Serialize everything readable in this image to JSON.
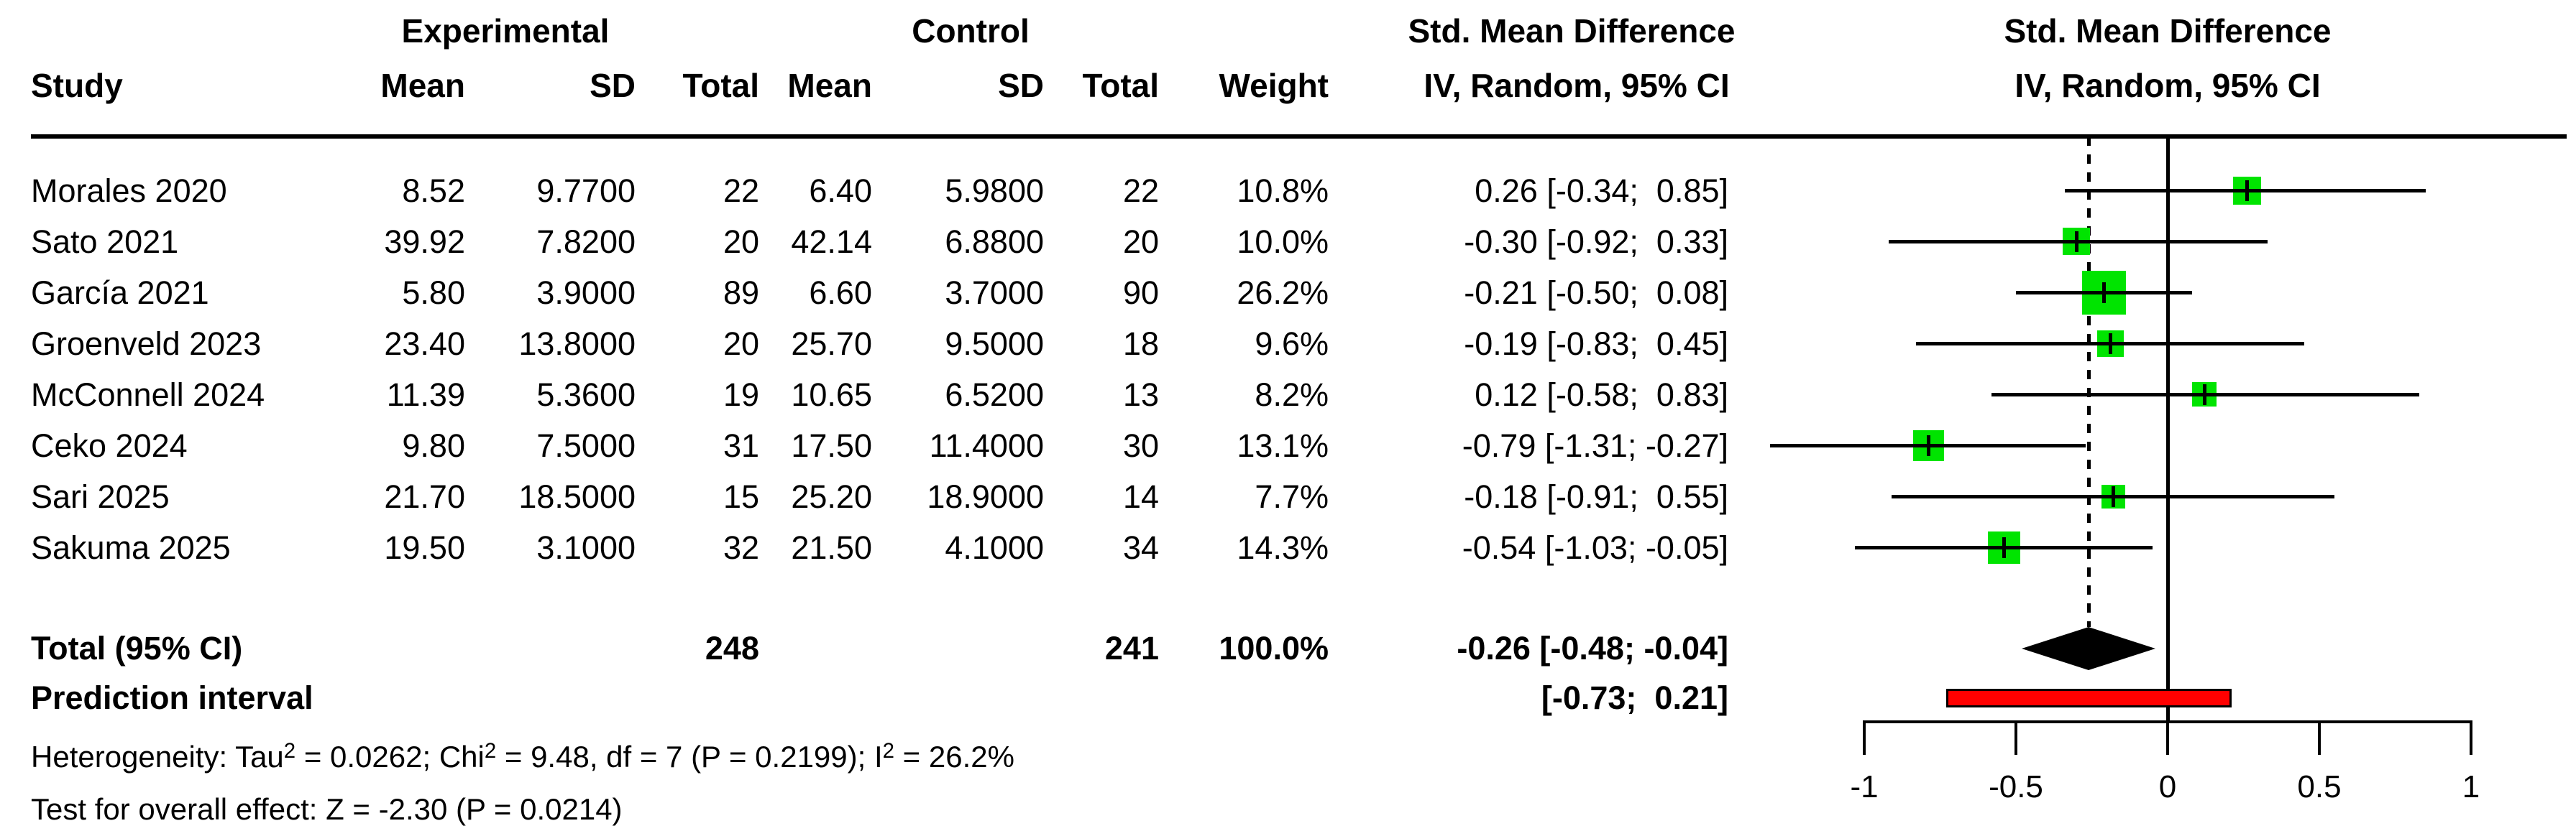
{
  "header": {
    "study": "Study",
    "experimental": "Experimental",
    "control": "Control",
    "exp_mean": "Mean",
    "exp_sd": "SD",
    "exp_total": "Total",
    "ctrl_mean": "Mean",
    "ctrl_sd": "SD",
    "ctrl_total": "Total",
    "weight": "Weight",
    "smd_line1": "Std. Mean Difference",
    "smd_line2": "IV, Random, 95% CI",
    "plot_line1": "Std. Mean Difference",
    "plot_line2": "IV, Random, 95% CI"
  },
  "studies": [
    {
      "name": "Morales 2020",
      "exp_mean": "8.52",
      "exp_sd": "9.7700",
      "exp_total": "22",
      "ctrl_mean": "6.40",
      "ctrl_sd": "5.9800",
      "ctrl_total": "22",
      "weight_text": "10.8%",
      "smd_text": "0.26 [-0.34;  0.85]",
      "est": 0.26,
      "lo": -0.34,
      "hi": 0.85,
      "weight": 10.8
    },
    {
      "name": "Sato 2021",
      "exp_mean": "39.92",
      "exp_sd": "7.8200",
      "exp_total": "20",
      "ctrl_mean": "42.14",
      "ctrl_sd": "6.8800",
      "ctrl_total": "20",
      "weight_text": "10.0%",
      "smd_text": "-0.30 [-0.92;  0.33]",
      "est": -0.3,
      "lo": -0.92,
      "hi": 0.33,
      "weight": 10.0
    },
    {
      "name": "García 2021",
      "exp_mean": "5.80",
      "exp_sd": "3.9000",
      "exp_total": "89",
      "ctrl_mean": "6.60",
      "ctrl_sd": "3.7000",
      "ctrl_total": "90",
      "weight_text": "26.2%",
      "smd_text": "-0.21 [-0.50;  0.08]",
      "est": -0.21,
      "lo": -0.5,
      "hi": 0.08,
      "weight": 26.2
    },
    {
      "name": "Groenveld 2023",
      "exp_mean": "23.40",
      "exp_sd": "13.8000",
      "exp_total": "20",
      "ctrl_mean": "25.70",
      "ctrl_sd": "9.5000",
      "ctrl_total": "18",
      "weight_text": "9.6%",
      "smd_text": "-0.19 [-0.83;  0.45]",
      "est": -0.19,
      "lo": -0.83,
      "hi": 0.45,
      "weight": 9.6
    },
    {
      "name": "McConnell 2024",
      "exp_mean": "11.39",
      "exp_sd": "5.3600",
      "exp_total": "19",
      "ctrl_mean": "10.65",
      "ctrl_sd": "6.5200",
      "ctrl_total": "13",
      "weight_text": "8.2%",
      "smd_text": "0.12 [-0.58;  0.83]",
      "est": 0.12,
      "lo": -0.58,
      "hi": 0.83,
      "weight": 8.2
    },
    {
      "name": "Ceko 2024",
      "exp_mean": "9.80",
      "exp_sd": "7.5000",
      "exp_total": "31",
      "ctrl_mean": "17.50",
      "ctrl_sd": "11.4000",
      "ctrl_total": "30",
      "weight_text": "13.1%",
      "smd_text": "-0.79 [-1.31; -0.27]",
      "est": -0.79,
      "lo": -1.31,
      "hi": -0.27,
      "weight": 13.1
    },
    {
      "name": "Sari 2025",
      "exp_mean": "21.70",
      "exp_sd": "18.5000",
      "exp_total": "15",
      "ctrl_mean": "25.20",
      "ctrl_sd": "18.9000",
      "ctrl_total": "14",
      "weight_text": "7.7%",
      "smd_text": "-0.18 [-0.91;  0.55]",
      "est": -0.18,
      "lo": -0.91,
      "hi": 0.55,
      "weight": 7.7
    },
    {
      "name": "Sakuma 2025",
      "exp_mean": "19.50",
      "exp_sd": "3.1000",
      "exp_total": "32",
      "ctrl_mean": "21.50",
      "ctrl_sd": "4.1000",
      "ctrl_total": "34",
      "weight_text": "14.3%",
      "smd_text": "-0.54 [-1.03; -0.05]",
      "est": -0.54,
      "lo": -1.03,
      "hi": -0.05,
      "weight": 14.3
    }
  ],
  "total": {
    "label": "Total (95% CI)",
    "exp_total": "248",
    "ctrl_total": "241",
    "weight_text": "100.0%",
    "smd_text": "-0.26 [-0.48; -0.04]",
    "est": -0.26,
    "lo": -0.48,
    "hi": -0.04
  },
  "prediction": {
    "label": "Prediction interval",
    "smd_text": "[-0.73;  0.21]",
    "lo": -0.73,
    "hi": 0.21
  },
  "notes": {
    "het": [
      "Heterogeneity: Tau",
      "2",
      " = 0.0262; Chi",
      "2",
      " = 9.48, df = 7 (P = 0.2199); I",
      "2",
      " = 26.2%"
    ],
    "overall": "Test for overall effect: Z = -2.30 (P = 0.0214)"
  },
  "axis": {
    "ticks": [
      -1,
      -0.5,
      0,
      0.5,
      1
    ],
    "tick_labels": [
      "-1",
      "-0.5",
      "0",
      "0.5",
      "1"
    ],
    "reference": 0
  },
  "colors": {
    "square": "#00E400",
    "diamond": "#000000",
    "prediction_fill": "#FF0000",
    "line": "#000000"
  },
  "chart_data": {
    "type": "scatter",
    "variant": "forest_plot",
    "title": "Std. Mean Difference, IV, Random, 95% CI",
    "xlabel": "Std. Mean Difference",
    "xlim": [
      -1,
      1
    ],
    "x_ticks": [
      -1,
      -0.5,
      0,
      0.5,
      1
    ],
    "reference_line": 0,
    "grid": false,
    "studies": [
      "Morales 2020",
      "Sato 2021",
      "García 2021",
      "Groenveld 2023",
      "McConnell 2024",
      "Ceko 2024",
      "Sari 2025",
      "Sakuma 2025"
    ],
    "estimates": [
      0.26,
      -0.3,
      -0.21,
      -0.19,
      0.12,
      -0.79,
      -0.18,
      -0.54
    ],
    "ci_lower": [
      -0.34,
      -0.92,
      -0.5,
      -0.83,
      -0.58,
      -1.31,
      -0.91,
      -1.03
    ],
    "ci_upper": [
      0.85,
      0.33,
      0.08,
      0.45,
      0.83,
      -0.27,
      0.55,
      -0.05
    ],
    "weights_pct": [
      10.8,
      10.0,
      26.2,
      9.6,
      8.2,
      13.1,
      7.7,
      14.3
    ],
    "experimental": {
      "means": [
        8.52,
        39.92,
        5.8,
        23.4,
        11.39,
        9.8,
        21.7,
        19.5
      ],
      "sds": [
        9.77,
        7.82,
        3.9,
        13.8,
        5.36,
        7.5,
        18.5,
        3.1
      ],
      "totals": [
        22,
        20,
        89,
        20,
        19,
        31,
        15,
        32
      ]
    },
    "control": {
      "means": [
        6.4,
        42.14,
        6.6,
        25.7,
        10.65,
        17.5,
        25.2,
        21.5
      ],
      "sds": [
        5.98,
        6.88,
        3.7,
        9.5,
        6.52,
        11.4,
        18.9,
        4.1
      ],
      "totals": [
        22,
        20,
        90,
        18,
        13,
        30,
        14,
        34
      ]
    },
    "pooled": {
      "label": "Total (95% CI)",
      "estimate": -0.26,
      "ci": [
        -0.48,
        -0.04
      ],
      "exp_total": 248,
      "ctrl_total": 241,
      "weight_pct": 100.0
    },
    "prediction_interval": [
      -0.73,
      0.21
    ],
    "heterogeneity": {
      "tau2": 0.0262,
      "chi2": 9.48,
      "df": 7,
      "p": 0.2199,
      "i2_pct": 26.2
    },
    "overall_effect": {
      "z": -2.3,
      "p": 0.0214
    }
  }
}
